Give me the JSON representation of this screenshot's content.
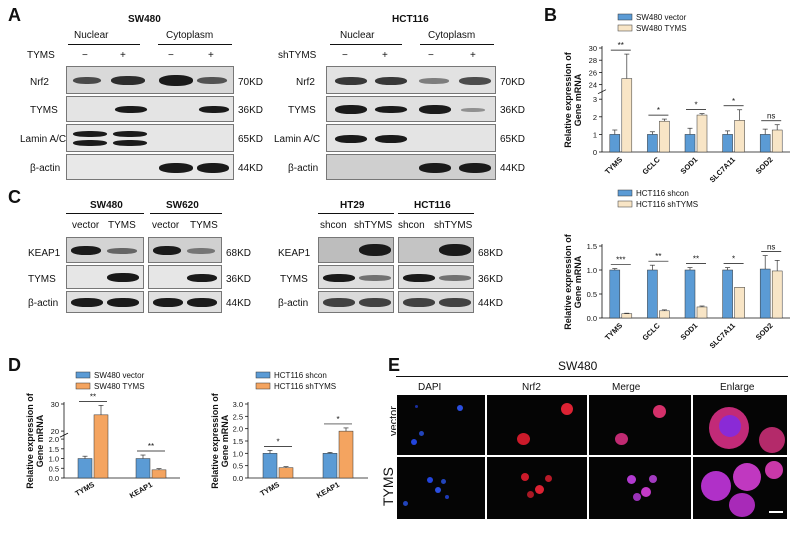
{
  "panels": {
    "A": {
      "letter": "A",
      "left": {
        "cell_line": "SW480",
        "fractions": [
          "Nuclear",
          "Cytoplasm"
        ],
        "treatment": "TYMS",
        "signs": [
          "−",
          "+",
          "−",
          "+"
        ],
        "rows": [
          "Nrf2",
          "TYMS",
          "Lamin A/C",
          "β-actin"
        ],
        "kd": [
          "70KD",
          "36KD",
          "65KD",
          "44KD"
        ]
      },
      "right": {
        "cell_line": "HCT116",
        "fractions": [
          "Nuclear",
          "Cytoplasm"
        ],
        "treatment": "shTYMS",
        "signs": [
          "−",
          "+",
          "−",
          "+"
        ],
        "rows": [
          "Nrf2",
          "TYMS",
          "Lamin A/C",
          "β-actin"
        ],
        "kd": [
          "70KD",
          "36KD",
          "65KD",
          "44KD"
        ]
      }
    },
    "C": {
      "letter": "C",
      "left": {
        "groups": [
          "SW480",
          "SW620"
        ],
        "lanes": [
          "vector",
          "TYMS",
          "vector",
          "TYMS"
        ],
        "rows": [
          "KEAP1",
          "TYMS",
          "β-actin"
        ],
        "kd": [
          "68KD",
          "36KD",
          "44KD"
        ]
      },
      "right": {
        "groups": [
          "HT29",
          "HCT116"
        ],
        "lanes": [
          "shcon",
          "shTYMS",
          "shcon",
          "shTYMS"
        ],
        "rows": [
          "KEAP1",
          "TYMS",
          "β-actin"
        ],
        "kd": [
          "68KD",
          "36KD",
          "44KD"
        ]
      }
    },
    "E": {
      "letter": "E",
      "title": "SW480",
      "columns": [
        "DAPI",
        "Nrf2",
        "Merge",
        "Enlarge"
      ],
      "rows": [
        "vector",
        "TYMS"
      ]
    }
  },
  "chart_data": [
    {
      "id": "B-top",
      "panel_letter": "B",
      "type": "bar",
      "categories": [
        "TYMS",
        "GCLC",
        "SOD1",
        "SLC7A11",
        "SOD2"
      ],
      "series": [
        {
          "name": "SW480 vector",
          "values": [
            1.0,
            1.0,
            1.0,
            1.0,
            1.0
          ],
          "errors": [
            0.25,
            0.15,
            0.35,
            0.2,
            0.3
          ]
        },
        {
          "name": "SW480 TYMS",
          "values": [
            25.0,
            1.75,
            2.1,
            1.8,
            1.25
          ],
          "errors": [
            4.0,
            0.12,
            0.08,
            0.6,
            0.3
          ]
        }
      ],
      "ylabel": "Relative expression of Gene mRNA",
      "yticks": [
        0,
        1,
        2,
        3,
        24,
        26,
        28,
        30
      ],
      "y_break": [
        3.2,
        23.5
      ],
      "significance": [
        "**",
        "*",
        "*",
        "*",
        "ns"
      ],
      "colors": [
        "#5b9bd5",
        "#f8e5c6"
      ],
      "legend": "top"
    },
    {
      "id": "B-bottom",
      "type": "bar",
      "categories": [
        "TYMS",
        "GCLC",
        "SOD1",
        "SLC7A11",
        "SOD2"
      ],
      "series": [
        {
          "name": "HCT116 shcon",
          "values": [
            1.0,
            1.0,
            1.0,
            1.0,
            1.02
          ],
          "errors": [
            0.03,
            0.1,
            0.05,
            0.05,
            0.28
          ]
        },
        {
          "name": "HCT116 shTYMS",
          "values": [
            0.09,
            0.15,
            0.23,
            0.64,
            0.98
          ],
          "errors": [
            0.01,
            0.02,
            0.02,
            0.0,
            0.22
          ]
        }
      ],
      "ylabel": "Relative expression of Gene mRNA",
      "ylim": [
        0,
        1.5
      ],
      "yticks": [
        0.0,
        0.5,
        1.0,
        1.5
      ],
      "significance": [
        "***",
        "**",
        "**",
        "*",
        "ns"
      ],
      "colors": [
        "#5b9bd5",
        "#f8e5c6"
      ],
      "legend": "top"
    },
    {
      "id": "D-left",
      "panel_letter": "D",
      "type": "bar",
      "categories": [
        "TYMS",
        "KEAP1"
      ],
      "series": [
        {
          "name": "SW480 vector",
          "values": [
            1.0,
            1.0
          ],
          "errors": [
            0.12,
            0.18
          ]
        },
        {
          "name": "SW480 TYMS",
          "values": [
            26.0,
            0.42
          ],
          "errors": [
            3.5,
            0.06
          ]
        }
      ],
      "ylabel": "Relative expression of Gene mRNA",
      "yticks": [
        0.0,
        0.5,
        1.0,
        1.5,
        2.0,
        20,
        30
      ],
      "y_break": [
        2.0,
        20
      ],
      "significance": [
        "**",
        "**"
      ],
      "colors": [
        "#5b9bd5",
        "#f4a460"
      ],
      "legend": "top"
    },
    {
      "id": "D-right",
      "type": "bar",
      "categories": [
        "TYMS",
        "KEAP1"
      ],
      "series": [
        {
          "name": "HCT116 shcon",
          "values": [
            1.0,
            1.0
          ],
          "errors": [
            0.12,
            0.04
          ]
        },
        {
          "name": "HCT116 shTYMS",
          "values": [
            0.42,
            1.9
          ],
          "errors": [
            0.04,
            0.13
          ]
        }
      ],
      "ylabel": "Relative expression of Gene mRNA",
      "ylim": [
        0,
        3.0
      ],
      "yticks": [
        0.0,
        0.5,
        1.0,
        1.5,
        2.0,
        2.5,
        3.0
      ],
      "significance": [
        "*",
        "*"
      ],
      "colors": [
        "#5b9bd5",
        "#f4a460"
      ],
      "legend": "top"
    }
  ]
}
